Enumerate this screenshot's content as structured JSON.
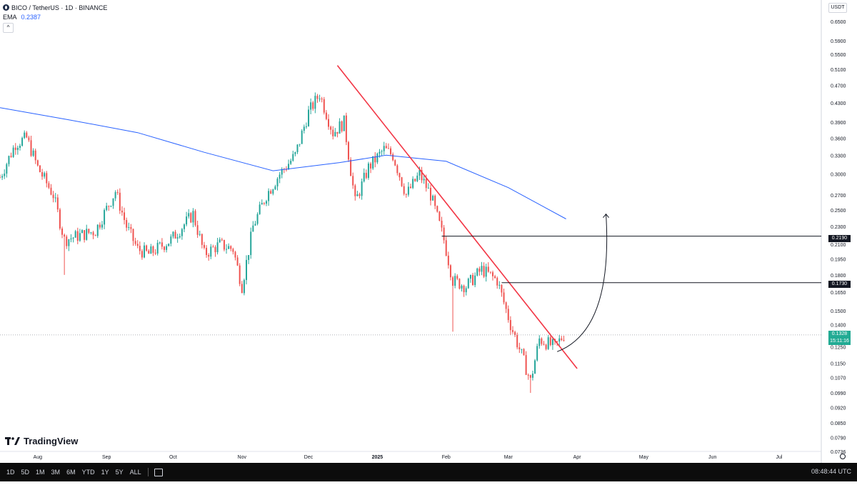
{
  "header": {
    "symbol": "BICO / TetherUS · 1D · BINANCE",
    "indicator_label": "EMA",
    "indicator_value": "0.2387",
    "collapse": "^"
  },
  "currency_button": "USDT",
  "logo_text": "TradingView",
  "bottom_bar": {
    "ranges": [
      "1D",
      "5D",
      "1M",
      "3M",
      "6M",
      "YTD",
      "1Y",
      "5Y",
      "ALL"
    ],
    "time": "08:48:44 UTC"
  },
  "price_tags": {
    "level_1": "0.2190",
    "level_2": "0.1730",
    "last_price": "0.1328",
    "countdown": "15:11:16"
  },
  "colors": {
    "up": "#26a69a",
    "down": "#ef5350",
    "ema": "#2962ff",
    "trendline": "#f23645",
    "levels": "#131722",
    "last_price": "#22ab94"
  },
  "chart_data": {
    "type": "candlestick",
    "y_scale": "log",
    "ylim": [
      0.0736,
      0.65
    ],
    "y_ticks": [
      "0.6500",
      "0.5900",
      "0.5500",
      "0.5100",
      "0.4700",
      "0.4300",
      "0.3900",
      "0.3600",
      "0.3300",
      "0.3000",
      "0.2700",
      "0.2500",
      "0.2300",
      "0.2100",
      "0.1950",
      "0.1800",
      "0.1650",
      "0.1500",
      "0.1400",
      "0.1250",
      "0.1150",
      "0.1070",
      "0.0990",
      "0.0920",
      "0.0850",
      "0.0790",
      "0.0736"
    ],
    "x_ticks": [
      "Aug",
      "Sep",
      "Oct",
      "Nov",
      "Dec",
      "2025",
      "Feb",
      "Mar",
      "Apr",
      "May",
      "Jun",
      "Jul"
    ],
    "x_range": [
      "2024-07-15",
      "2025-07-20"
    ],
    "close_path": [
      [
        "2024-07-15",
        0.295
      ],
      [
        "2024-07-22",
        0.35
      ],
      [
        "2024-07-27",
        0.36
      ],
      [
        "2024-08-01",
        0.31
      ],
      [
        "2024-08-08",
        0.27
      ],
      [
        "2024-08-13",
        0.215
      ],
      [
        "2024-08-20",
        0.22
      ],
      [
        "2024-08-27",
        0.225
      ],
      [
        "2024-09-05",
        0.275
      ],
      [
        "2024-09-10",
        0.23
      ],
      [
        "2024-09-15",
        0.205
      ],
      [
        "2024-09-20",
        0.2
      ],
      [
        "2024-09-30",
        0.215
      ],
      [
        "2024-10-10",
        0.245
      ],
      [
        "2024-10-15",
        0.2
      ],
      [
        "2024-10-22",
        0.21
      ],
      [
        "2024-10-28",
        0.205
      ],
      [
        "2024-11-01",
        0.17
      ],
      [
        "2024-11-06",
        0.23
      ],
      [
        "2024-11-12",
        0.27
      ],
      [
        "2024-11-18",
        0.3
      ],
      [
        "2024-11-25",
        0.33
      ],
      [
        "2024-12-01",
        0.41
      ],
      [
        "2024-12-06",
        0.45
      ],
      [
        "2024-12-12",
        0.37
      ],
      [
        "2024-12-17",
        0.39
      ],
      [
        "2024-12-22",
        0.26
      ],
      [
        "2024-12-28",
        0.31
      ],
      [
        "2025-01-04",
        0.34
      ],
      [
        "2025-01-08",
        0.33
      ],
      [
        "2025-01-14",
        0.27
      ],
      [
        "2025-01-20",
        0.3
      ],
      [
        "2025-01-25",
        0.27
      ],
      [
        "2025-01-31",
        0.215
      ],
      [
        "2025-02-04",
        0.175
      ],
      [
        "2025-02-10",
        0.17
      ],
      [
        "2025-02-17",
        0.185
      ],
      [
        "2025-02-24",
        0.175
      ],
      [
        "2025-03-02",
        0.14
      ],
      [
        "2025-03-07",
        0.12
      ],
      [
        "2025-03-11",
        0.105
      ],
      [
        "2025-03-15",
        0.13
      ],
      [
        "2025-03-22",
        0.125
      ],
      [
        "2025-03-26",
        0.1328
      ]
    ],
    "low_wicks": [
      [
        "2024-08-13",
        0.18
      ],
      [
        "2024-11-01",
        0.165
      ],
      [
        "2025-02-04",
        0.135
      ],
      [
        "2025-03-11",
        0.099
      ]
    ],
    "ema": {
      "name": "EMA",
      "points": [
        [
          "2024-07-15",
          0.42
        ],
        [
          "2024-08-15",
          0.395
        ],
        [
          "2024-09-15",
          0.37
        ],
        [
          "2024-10-15",
          0.335
        ],
        [
          "2024-11-15",
          0.305
        ],
        [
          "2024-12-15",
          0.318
        ],
        [
          "2025-01-05",
          0.33
        ],
        [
          "2025-02-01",
          0.32
        ],
        [
          "2025-03-01",
          0.28
        ],
        [
          "2025-03-27",
          0.239
        ]
      ]
    },
    "trendline": [
      [
        "2024-12-14",
        0.52
      ],
      [
        "2025-04-01",
        0.112
      ]
    ],
    "levels": [
      {
        "price": 0.219,
        "from": "2025-01-30",
        "to": "2025-07-20"
      },
      {
        "price": 0.173,
        "from": "2025-02-26",
        "to": "2025-07-20"
      }
    ],
    "arrow": [
      [
        "2025-03-23",
        0.122
      ],
      [
        "2025-04-14",
        0.245
      ]
    ],
    "last_price": 0.1328
  }
}
